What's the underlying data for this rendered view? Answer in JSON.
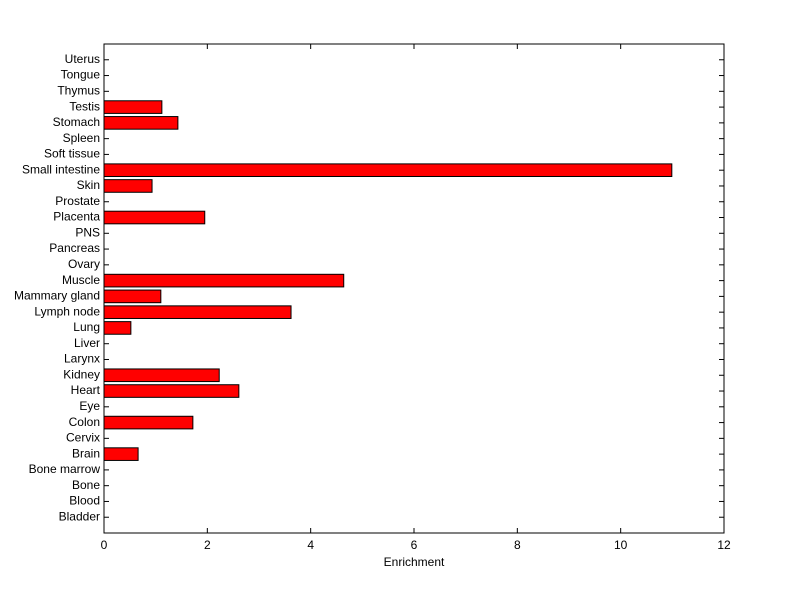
{
  "chart_data": {
    "type": "barh",
    "x_label": "Enrichment",
    "categories": [
      "Bladder",
      "Blood",
      "Bone",
      "Bone marrow",
      "Brain",
      "Cervix",
      "Colon",
      "Eye",
      "Heart",
      "Kidney",
      "Larynx",
      "Liver",
      "Lung",
      "Lymph node",
      "Mammary gland",
      "Muscle",
      "Ovary",
      "Pancreas",
      "PNS",
      "Placenta",
      "Prostate",
      "Skin",
      "Small intestine",
      "Soft tissue",
      "Spleen",
      "Stomach",
      "Testis",
      "Thymus",
      "Tongue",
      "Uterus"
    ],
    "values": [
      0,
      0,
      0,
      0,
      0.66,
      0,
      1.72,
      0,
      2.61,
      2.23,
      0,
      0,
      0.52,
      3.62,
      1.1,
      4.64,
      0,
      0,
      0,
      1.95,
      0,
      0.93,
      10.99,
      0,
      0,
      1.43,
      1.12,
      0,
      0,
      0
    ],
    "color": "#ff0000",
    "xlim": [
      0,
      12
    ],
    "xticks": [
      0,
      2,
      4,
      6,
      8,
      10,
      12
    ]
  }
}
